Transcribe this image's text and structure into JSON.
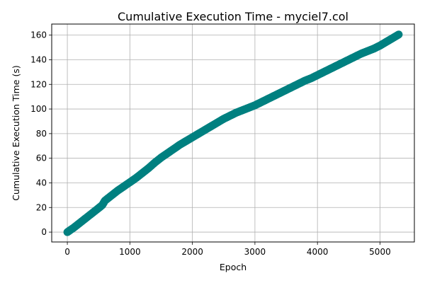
{
  "chart_data": {
    "type": "scatter",
    "title": "Cumulative Execution Time - myciel7.col",
    "xlabel": "Epoch",
    "ylabel": "Cumulative Execution Time (s)",
    "xlim": [
      -250,
      5550
    ],
    "ylim": [
      -8,
      169
    ],
    "xticks": [
      0,
      1000,
      2000,
      3000,
      4000,
      5000
    ],
    "yticks": [
      0,
      20,
      40,
      60,
      80,
      100,
      120,
      140,
      160
    ],
    "grid": true,
    "marker_color": "#008080",
    "series": [
      {
        "points": [
          [
            0,
            0
          ],
          [
            100,
            3.5
          ],
          [
            200,
            7.5
          ],
          [
            300,
            11.5
          ],
          [
            400,
            15.5
          ],
          [
            500,
            19.5
          ],
          [
            560,
            22
          ],
          [
            600,
            25.5
          ],
          [
            700,
            29.5
          ],
          [
            800,
            33.5
          ],
          [
            900,
            37
          ],
          [
            1000,
            40.5
          ],
          [
            1100,
            44
          ],
          [
            1200,
            48
          ],
          [
            1300,
            52
          ],
          [
            1400,
            56.5
          ],
          [
            1500,
            60.5
          ],
          [
            1600,
            64
          ],
          [
            1700,
            67.5
          ],
          [
            1800,
            71
          ],
          [
            1900,
            74
          ],
          [
            2000,
            77
          ],
          [
            2100,
            80
          ],
          [
            2200,
            83
          ],
          [
            2300,
            86
          ],
          [
            2400,
            89
          ],
          [
            2500,
            92
          ],
          [
            2600,
            94.5
          ],
          [
            2700,
            97
          ],
          [
            2800,
            99
          ],
          [
            2900,
            101
          ],
          [
            3000,
            103
          ],
          [
            3100,
            105.5
          ],
          [
            3200,
            108
          ],
          [
            3300,
            110.5
          ],
          [
            3400,
            113
          ],
          [
            3500,
            115.5
          ],
          [
            3600,
            118
          ],
          [
            3700,
            120.5
          ],
          [
            3800,
            123
          ],
          [
            3900,
            125
          ],
          [
            4000,
            127.5
          ],
          [
            4100,
            130
          ],
          [
            4200,
            132.5
          ],
          [
            4300,
            135
          ],
          [
            4400,
            137.5
          ],
          [
            4500,
            140
          ],
          [
            4600,
            142.5
          ],
          [
            4700,
            145
          ],
          [
            4800,
            147
          ],
          [
            4900,
            149
          ],
          [
            5000,
            151.5
          ],
          [
            5100,
            154.5
          ],
          [
            5200,
            157.5
          ],
          [
            5300,
            160.5
          ]
        ]
      }
    ]
  }
}
